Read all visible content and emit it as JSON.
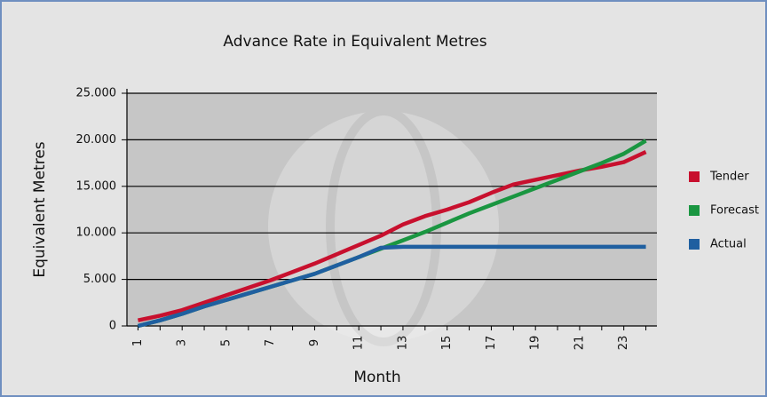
{
  "chart_data": {
    "type": "line",
    "title": "Advance Rate in Equivalent Metres",
    "x_label": "Month",
    "y_label": "Equivalent Metres",
    "categories": [
      "1",
      null,
      "3",
      null,
      "5",
      null,
      "7",
      null,
      "9",
      null,
      "11",
      null,
      "13",
      null,
      "15",
      null,
      "17",
      null,
      "19",
      null,
      "21",
      null,
      "23",
      null
    ],
    "series": [
      {
        "name": "Tender",
        "color": "#c8102e",
        "values": [
          600,
          1100,
          1700,
          2500,
          3300,
          4100,
          4900,
          5800,
          6700,
          7700,
          8700,
          9700,
          10900,
          11800,
          12500,
          13300,
          14300,
          15200,
          15700,
          16200,
          16700,
          17100,
          17600,
          18700
        ]
      },
      {
        "name": "Forecast",
        "color": "#1a9641",
        "values": [
          0,
          600,
          1300,
          2100,
          2800,
          3500,
          4200,
          4900,
          5600,
          6500,
          7400,
          8300,
          9200,
          10100,
          11100,
          12100,
          13000,
          13900,
          14800,
          15700,
          16600,
          17500,
          18500,
          19900
        ]
      },
      {
        "name": "Actual",
        "color": "#1f5fa0",
        "values": [
          0,
          600,
          1300,
          2100,
          2800,
          3500,
          4200,
          4900,
          5600,
          6500,
          7400,
          8400,
          8500,
          8500,
          8500,
          8500,
          8500,
          8500,
          8500,
          8500,
          8500,
          8500,
          8500,
          8500
        ]
      }
    ],
    "ylim": [
      0,
      25000
    ],
    "yticks": [
      0,
      {
        "value": 5000,
        "label": "5.000"
      },
      {
        "value": 10000,
        "label": "10.000"
      },
      {
        "value": 15000,
        "label": "15.000"
      },
      {
        "value": 20000,
        "label": "20.000"
      },
      {
        "value": 25000,
        "label": "25.000"
      }
    ],
    "grid": true,
    "legend": "right"
  }
}
